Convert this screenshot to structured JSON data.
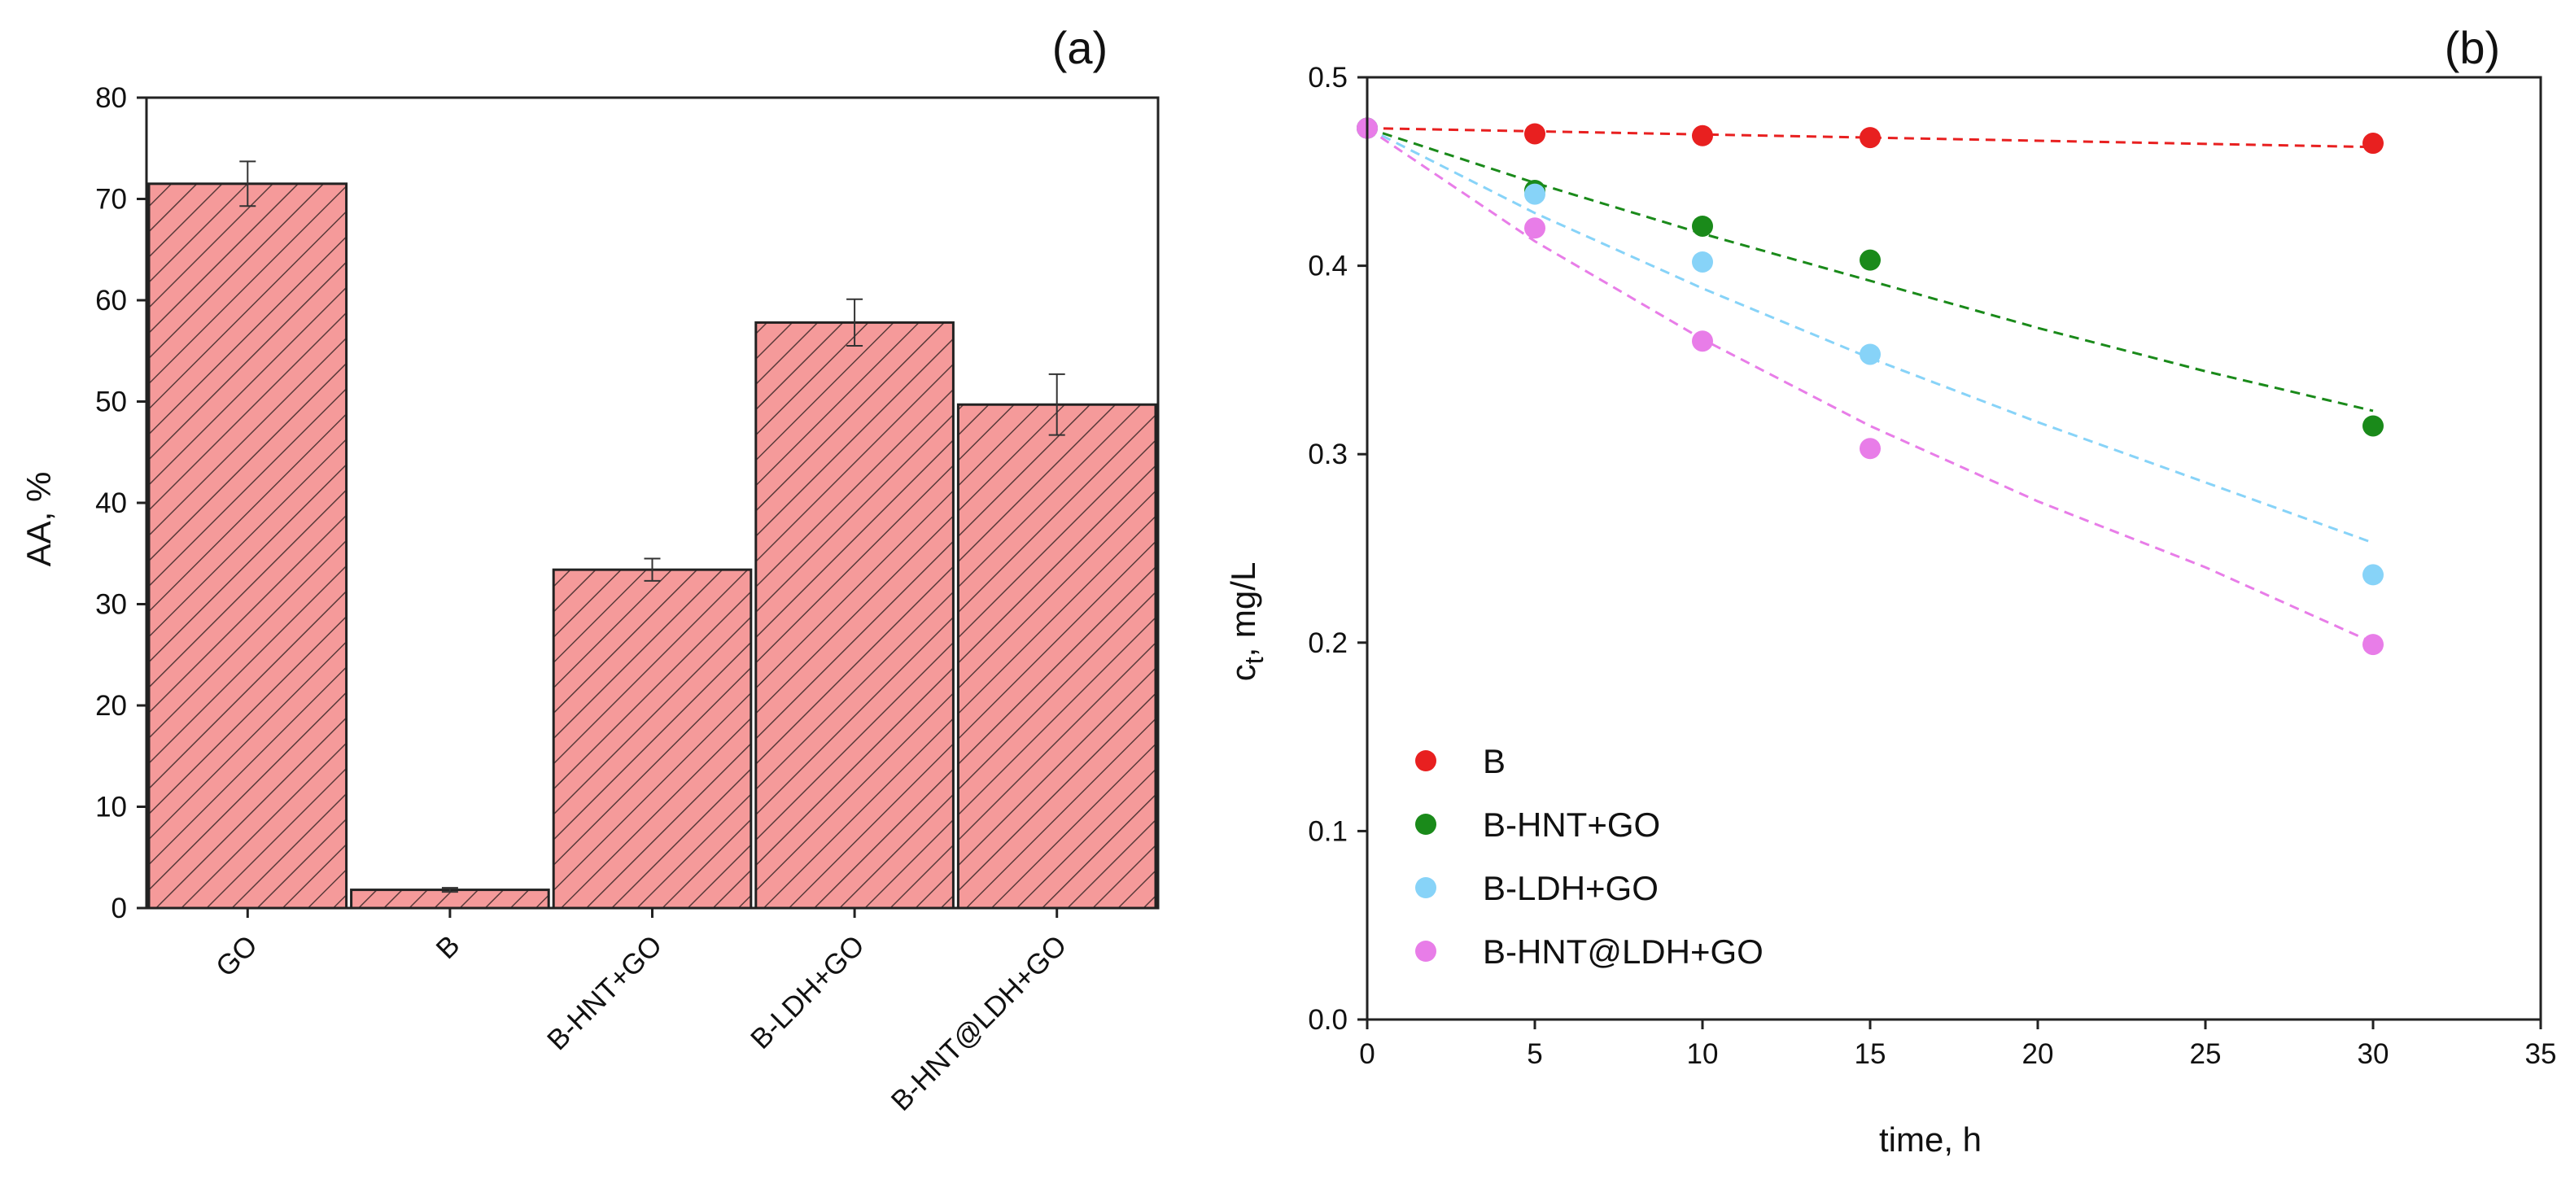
{
  "chart_data": [
    {
      "type": "bar",
      "panel_label": "(a)",
      "title": "",
      "xlabel": "",
      "ylabel": "AA, %",
      "ylim": [
        0,
        80
      ],
      "yticks": [
        0,
        10,
        20,
        30,
        40,
        50,
        60,
        70,
        80
      ],
      "categories": [
        "GO",
        "B",
        "B-HNT+GO",
        "B-LDH+GO",
        "B-HNT@LDH+GO"
      ],
      "values": [
        71.5,
        1.8,
        33.4,
        57.8,
        49.7
      ],
      "errors": [
        2.2,
        0.2,
        1.1,
        2.3,
        3.0
      ],
      "bar_color": "#f59a9a",
      "hatch_color": "#5a3a3a",
      "grid": false
    },
    {
      "type": "scatter",
      "panel_label": "(b)",
      "title": "",
      "xlabel": "time, h",
      "ylabel": "c",
      "ylabel_subscript": "t",
      "ylabel_suffix": ", mg/L",
      "xlim": [
        0,
        35
      ],
      "ylim": [
        0,
        0.5
      ],
      "xticks": [
        0,
        5,
        10,
        15,
        20,
        25,
        30,
        35
      ],
      "yticks": [
        0.0,
        0.1,
        0.2,
        0.3,
        0.4,
        0.5
      ],
      "ytick_labels": [
        "0.0",
        "0.1",
        "0.2",
        "0.3",
        "0.4",
        "0.5"
      ],
      "legend_position": "bottom-left",
      "grid": false,
      "series": [
        {
          "name": "B",
          "color": "#e82020",
          "x": [
            0,
            5,
            10,
            15,
            30
          ],
          "y": [
            0.473,
            0.47,
            0.469,
            0.468,
            0.465
          ],
          "fit_x": [
            0,
            30
          ],
          "fit_y": [
            0.473,
            0.463
          ]
        },
        {
          "name": "B-HNT+GO",
          "color": "#1a8a1a",
          "x": [
            0,
            5,
            10,
            15,
            30
          ],
          "y": [
            0.473,
            0.44,
            0.421,
            0.403,
            0.315
          ],
          "fit_x": [
            0,
            5,
            10,
            15,
            20,
            25,
            30
          ],
          "fit_y": [
            0.473,
            0.444,
            0.417,
            0.392,
            0.367,
            0.344,
            0.323
          ]
        },
        {
          "name": "B-LDH+GO",
          "color": "#87d3f8",
          "x": [
            0,
            5,
            10,
            15,
            30
          ],
          "y": [
            0.473,
            0.438,
            0.402,
            0.353,
            0.236
          ],
          "fit_x": [
            0,
            5,
            10,
            15,
            20,
            25,
            30
          ],
          "fit_y": [
            0.473,
            0.428,
            0.388,
            0.351,
            0.317,
            0.285,
            0.253
          ]
        },
        {
          "name": "B-HNT@LDH+GO",
          "color": "#e87de8",
          "x": [
            0,
            5,
            10,
            15,
            30
          ],
          "y": [
            0.473,
            0.42,
            0.36,
            0.303,
            0.199
          ],
          "fit_x": [
            0,
            5,
            10,
            15,
            20,
            25,
            30
          ],
          "fit_y": [
            0.473,
            0.413,
            0.361,
            0.315,
            0.275,
            0.24,
            0.2
          ]
        }
      ]
    }
  ]
}
